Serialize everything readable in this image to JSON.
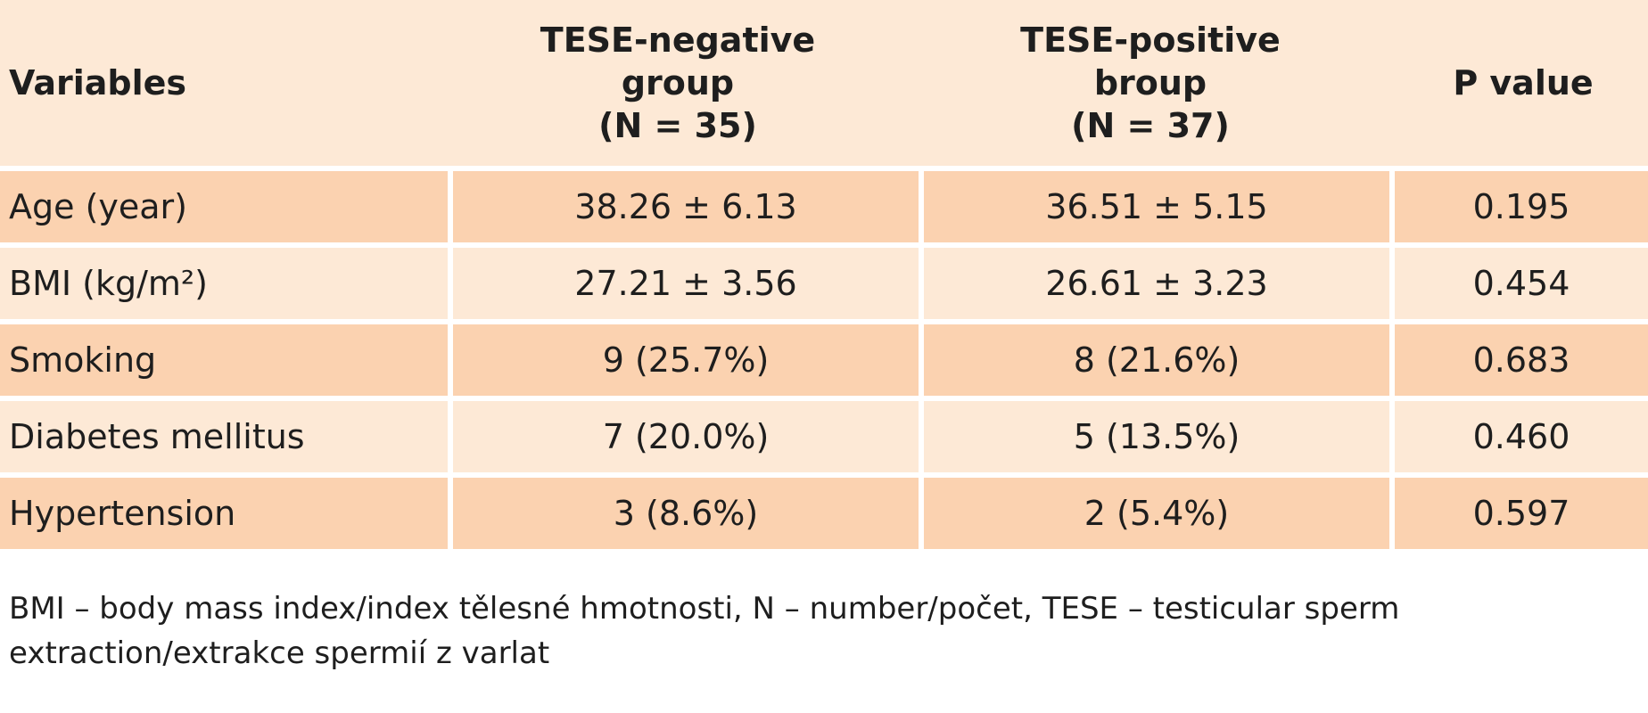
{
  "table": {
    "header": {
      "variables": "Variables",
      "neg_lines": [
        "TESE-negative",
        "group",
        "(N = 35)"
      ],
      "pos_lines": [
        "TESE-positive",
        "broup",
        "(N = 37)"
      ],
      "p_value": "P value"
    },
    "rows": [
      {
        "variable": "Age (year)",
        "negative": "38.26 ± 6.13",
        "positive": "36.51 ± 5.15",
        "p": "0.195"
      },
      {
        "variable": "BMI (kg/m²)",
        "negative": "27.21 ± 3.56",
        "positive": "26.61 ± 3.23",
        "p": "0.454"
      },
      {
        "variable": "Smoking",
        "negative": "9 (25.7%)",
        "positive": "8 (21.6%)",
        "p": "0.683"
      },
      {
        "variable": "Diabetes mellitus",
        "negative": "7 (20.0%)",
        "positive": "5 (13.5%)",
        "p": "0.460"
      },
      {
        "variable": "Hypertension",
        "negative": "3 (8.6%)",
        "positive": "2 (5.4%)",
        "p": "0.597"
      }
    ]
  },
  "footnote": {
    "line1": "BMI – body mass index/index tělesné hmotnosti, N – number/počet, TESE – testicular sperm",
    "line2": "extraction/extrakce spermií z varlat"
  },
  "colors": {
    "header_bg": "#fde9d6",
    "row_shaded": "#fbd2b0",
    "row_plain": "#fde9d6"
  }
}
